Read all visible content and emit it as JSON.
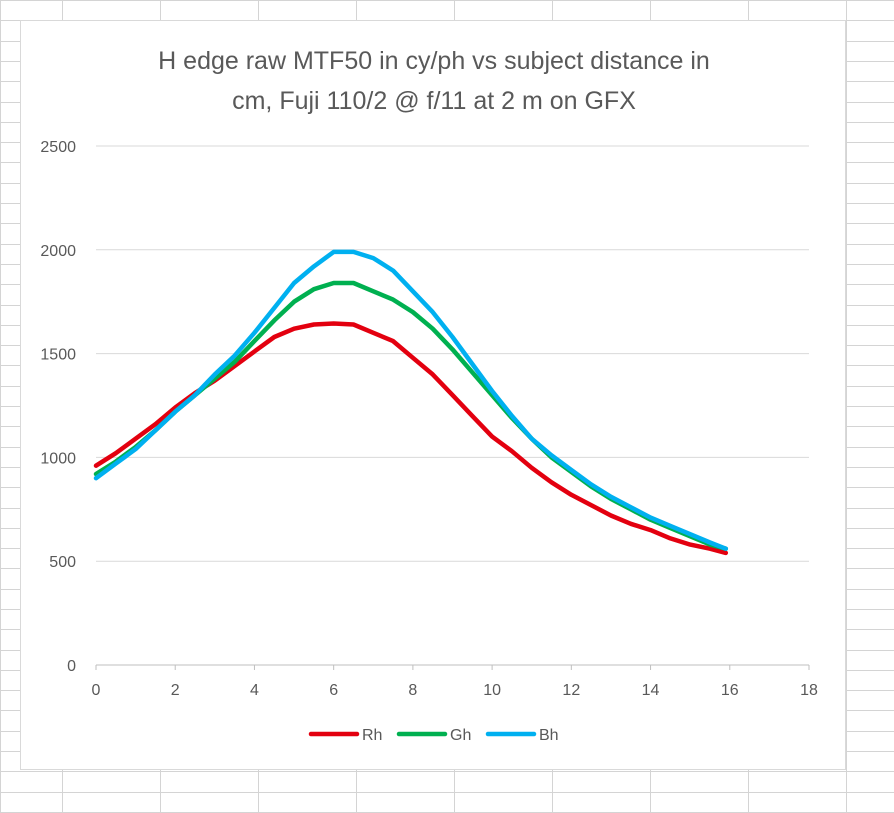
{
  "sheet": {
    "gridline_color": "#d4d4d4"
  },
  "chart_data": {
    "type": "line",
    "title_lines": [
      "H edge raw MTF50 in cy/ph vs subject distance in",
      "cm, Fuji 110/2 @ f/11 at 2 m on GFX"
    ],
    "xlabel": "",
    "ylabel": "",
    "xlim": [
      0,
      18
    ],
    "ylim": [
      0,
      2500
    ],
    "x_ticks": [
      "0",
      "2",
      "4",
      "6",
      "8",
      "10",
      "12",
      "14",
      "16",
      "18"
    ],
    "y_ticks": [
      "0",
      "500",
      "1000",
      "1500",
      "2000",
      "2500"
    ],
    "grid": "horizontal",
    "legend": "bottom",
    "x": [
      0,
      0.5,
      1,
      1.5,
      2,
      2.5,
      3,
      3.5,
      4,
      4.5,
      5,
      5.5,
      6,
      6.5,
      7,
      7.5,
      8,
      8.5,
      9,
      9.5,
      10,
      10.5,
      11,
      11.5,
      12,
      12.5,
      13,
      13.5,
      14,
      14.5,
      15,
      15.5,
      15.9
    ],
    "series": [
      {
        "name": "Rh",
        "color": "#e3000f",
        "values": [
          960,
          1020,
          1090,
          1160,
          1240,
          1310,
          1370,
          1440,
          1510,
          1580,
          1620,
          1640,
          1645,
          1640,
          1600,
          1560,
          1480,
          1400,
          1300,
          1200,
          1100,
          1030,
          950,
          880,
          820,
          770,
          720,
          680,
          650,
          610,
          580,
          560,
          540
        ]
      },
      {
        "name": "Gh",
        "color": "#00b050",
        "values": [
          920,
          980,
          1050,
          1130,
          1220,
          1300,
          1380,
          1460,
          1560,
          1660,
          1750,
          1810,
          1840,
          1840,
          1800,
          1760,
          1700,
          1620,
          1520,
          1410,
          1300,
          1190,
          1090,
          1000,
          930,
          860,
          800,
          750,
          700,
          660,
          620,
          580,
          560
        ]
      },
      {
        "name": "Bh",
        "color": "#00b0f0",
        "values": [
          900,
          970,
          1040,
          1130,
          1220,
          1300,
          1400,
          1490,
          1600,
          1720,
          1840,
          1920,
          1990,
          1990,
          1960,
          1900,
          1800,
          1700,
          1580,
          1450,
          1320,
          1200,
          1090,
          1010,
          940,
          870,
          810,
          760,
          710,
          670,
          630,
          590,
          560
        ]
      }
    ]
  }
}
